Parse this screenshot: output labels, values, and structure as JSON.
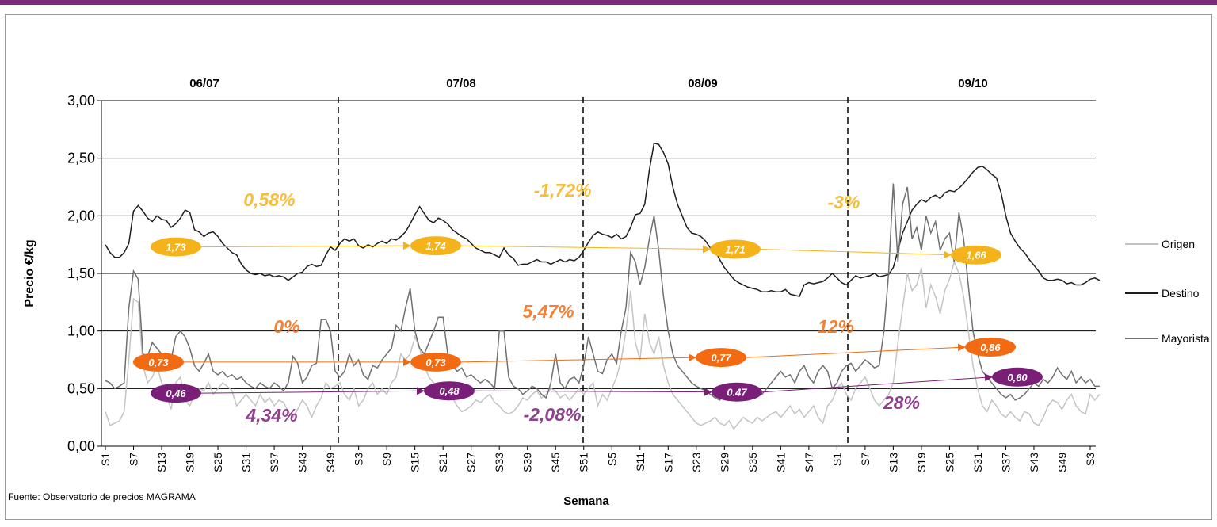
{
  "chart_data": {
    "type": "line",
    "y_label": "Precio €/kg",
    "x_label": "Semana",
    "source": "Fuente: Observatorio de precios MAGRAMA",
    "seasons": [
      "06/07",
      "07/08",
      "08/09",
      "09/10"
    ],
    "ylim": [
      0,
      3
    ],
    "yticks": [
      {
        "value": 0,
        "label": "0,00"
      },
      {
        "value": 0.5,
        "label": "0,50"
      },
      {
        "value": 1,
        "label": "1,00"
      },
      {
        "value": 1.5,
        "label": "1,50"
      },
      {
        "value": 2,
        "label": "2,00"
      },
      {
        "value": 2.5,
        "label": "2,50"
      },
      {
        "value": 3,
        "label": "3,00"
      }
    ],
    "grid": true,
    "categories": [
      "S1",
      null,
      null,
      null,
      null,
      null,
      "S7",
      null,
      null,
      null,
      null,
      null,
      "S13",
      null,
      null,
      null,
      null,
      null,
      "S19",
      null,
      null,
      null,
      null,
      null,
      "S25",
      null,
      null,
      null,
      null,
      null,
      "S31",
      null,
      null,
      null,
      null,
      null,
      "S37",
      null,
      null,
      null,
      null,
      null,
      "S43",
      null,
      null,
      null,
      null,
      null,
      "S49",
      null,
      null,
      null,
      null,
      null,
      "S3",
      null,
      null,
      null,
      null,
      null,
      "S9",
      null,
      null,
      null,
      null,
      null,
      "S15",
      null,
      null,
      null,
      null,
      null,
      "S21",
      null,
      null,
      null,
      null,
      null,
      "S27",
      null,
      null,
      null,
      null,
      null,
      "S33",
      null,
      null,
      null,
      null,
      null,
      "S39",
      null,
      null,
      null,
      null,
      null,
      "S45",
      null,
      null,
      null,
      null,
      null,
      "S51",
      null,
      null,
      null,
      null,
      null,
      "S5",
      null,
      null,
      null,
      null,
      null,
      "S11",
      null,
      null,
      null,
      null,
      null,
      "S17",
      null,
      null,
      null,
      null,
      null,
      "S23",
      null,
      null,
      null,
      null,
      null,
      "S29",
      null,
      null,
      null,
      null,
      null,
      "S35",
      null,
      null,
      null,
      null,
      null,
      "S41",
      null,
      null,
      null,
      null,
      null,
      "S47",
      null,
      null,
      null,
      null,
      null,
      "S1",
      null,
      null,
      null,
      null,
      null,
      "S7",
      null,
      null,
      null,
      null,
      null,
      "S13",
      null,
      null,
      null,
      null,
      null,
      "S19",
      null,
      null,
      null,
      null,
      null,
      "S25",
      null,
      null,
      null,
      null,
      null,
      "S31",
      null,
      null,
      null,
      null,
      null,
      "S37",
      null,
      null,
      null,
      null,
      null,
      "S43",
      null,
      null,
      null,
      null,
      null,
      "S49",
      null,
      null,
      null,
      null,
      null,
      "S3",
      null,
      null
    ],
    "series": [
      {
        "name": "Origen",
        "color": "#c4c4c4",
        "values": [
          0.3,
          0.18,
          0.2,
          0.22,
          0.3,
          0.75,
          1.28,
          1.25,
          0.7,
          0.55,
          0.6,
          0.7,
          0.55,
          0.45,
          0.32,
          0.55,
          0.6,
          0.4,
          0.35,
          0.45,
          0.5,
          0.48,
          0.55,
          0.45,
          0.5,
          0.55,
          0.52,
          0.48,
          0.35,
          0.4,
          0.45,
          0.4,
          0.35,
          0.45,
          0.38,
          0.42,
          0.35,
          0.4,
          0.38,
          0.3,
          0.25,
          0.32,
          0.4,
          0.35,
          0.25,
          0.35,
          0.42,
          0.55,
          0.5,
          0.52,
          0.55,
          0.45,
          0.4,
          0.5,
          0.35,
          0.4,
          0.5,
          0.55,
          0.45,
          0.5,
          0.45,
          0.55,
          0.6,
          0.8,
          0.75,
          0.8,
          0.95,
          0.85,
          0.7,
          0.6,
          0.55,
          0.5,
          0.45,
          0.4,
          0.42,
          0.35,
          0.3,
          0.32,
          0.35,
          0.4,
          0.38,
          0.42,
          0.45,
          0.38,
          0.35,
          0.3,
          0.28,
          0.3,
          0.35,
          0.42,
          0.4,
          0.45,
          0.48,
          0.42,
          0.45,
          0.5,
          0.48,
          0.42,
          0.45,
          0.4,
          0.45,
          0.5,
          0.45,
          0.5,
          0.55,
          0.35,
          0.45,
          0.4,
          0.5,
          0.6,
          0.75,
          1.0,
          1.35,
          0.9,
          0.75,
          1.15,
          0.9,
          0.8,
          0.95,
          0.7,
          0.55,
          0.45,
          0.4,
          0.35,
          0.3,
          0.25,
          0.2,
          0.18,
          0.2,
          0.22,
          0.25,
          0.2,
          0.18,
          0.22,
          0.15,
          0.2,
          0.25,
          0.22,
          0.2,
          0.25,
          0.22,
          0.25,
          0.28,
          0.3,
          0.25,
          0.3,
          0.35,
          0.28,
          0.32,
          0.25,
          0.3,
          0.35,
          0.25,
          0.2,
          0.35,
          0.4,
          0.5,
          0.55,
          0.45,
          0.4,
          0.5,
          0.55,
          0.6,
          0.5,
          0.4,
          0.35,
          0.4,
          0.45,
          0.55,
          0.9,
          1.2,
          1.5,
          1.35,
          1.4,
          1.55,
          1.2,
          1.4,
          1.3,
          1.15,
          1.35,
          1.45,
          1.6,
          1.5,
          1.3,
          1.0,
          0.7,
          0.5,
          0.35,
          0.3,
          0.4,
          0.35,
          0.28,
          0.25,
          0.3,
          0.25,
          0.22,
          0.3,
          0.28,
          0.2,
          0.18,
          0.25,
          0.35,
          0.4,
          0.38,
          0.32,
          0.4,
          0.45,
          0.35,
          0.3,
          0.28,
          0.45,
          0.4,
          0.45
        ]
      },
      {
        "name": "Destino",
        "color": "#1e1e1e",
        "values": [
          1.75,
          1.68,
          1.64,
          1.64,
          1.68,
          1.76,
          2.04,
          2.09,
          2.04,
          1.98,
          1.95,
          2.0,
          1.97,
          1.96,
          1.9,
          1.93,
          1.98,
          2.05,
          2.03,
          1.88,
          1.86,
          1.82,
          1.85,
          1.86,
          1.82,
          1.76,
          1.72,
          1.68,
          1.66,
          1.58,
          1.53,
          1.5,
          1.49,
          1.5,
          1.48,
          1.49,
          1.47,
          1.48,
          1.47,
          1.44,
          1.47,
          1.5,
          1.51,
          1.56,
          1.58,
          1.56,
          1.57,
          1.66,
          1.73,
          1.7,
          1.76,
          1.8,
          1.78,
          1.8,
          1.74,
          1.72,
          1.75,
          1.73,
          1.76,
          1.78,
          1.76,
          1.8,
          1.79,
          1.82,
          1.86,
          1.93,
          2.01,
          2.08,
          2.02,
          1.96,
          1.94,
          1.98,
          1.96,
          1.93,
          1.88,
          1.85,
          1.82,
          1.8,
          1.76,
          1.72,
          1.7,
          1.68,
          1.68,
          1.66,
          1.64,
          1.72,
          1.66,
          1.63,
          1.57,
          1.58,
          1.58,
          1.6,
          1.62,
          1.6,
          1.6,
          1.58,
          1.6,
          1.62,
          1.6,
          1.62,
          1.61,
          1.64,
          1.7,
          1.77,
          1.83,
          1.86,
          1.84,
          1.83,
          1.81,
          1.84,
          1.8,
          1.82,
          1.9,
          2.01,
          2.02,
          2.1,
          2.4,
          2.63,
          2.62,
          2.55,
          2.45,
          2.25,
          2.1,
          2.0,
          1.9,
          1.85,
          1.84,
          1.82,
          1.78,
          1.72,
          1.7,
          1.62,
          1.55,
          1.5,
          1.45,
          1.42,
          1.4,
          1.38,
          1.37,
          1.36,
          1.34,
          1.34,
          1.35,
          1.34,
          1.34,
          1.36,
          1.32,
          1.31,
          1.3,
          1.4,
          1.42,
          1.41,
          1.42,
          1.43,
          1.46,
          1.5,
          1.46,
          1.42,
          1.4,
          1.44,
          1.48,
          1.46,
          1.47,
          1.48,
          1.5,
          1.47,
          1.48,
          1.49,
          1.55,
          1.7,
          1.85,
          1.95,
          2.05,
          2.1,
          2.14,
          2.12,
          2.16,
          2.18,
          2.15,
          2.2,
          2.22,
          2.21,
          2.24,
          2.28,
          2.33,
          2.38,
          2.42,
          2.43,
          2.4,
          2.36,
          2.33,
          2.2,
          2.0,
          1.85,
          1.78,
          1.72,
          1.68,
          1.62,
          1.57,
          1.52,
          1.46,
          1.44,
          1.44,
          1.45,
          1.44,
          1.41,
          1.42,
          1.4,
          1.4,
          1.42,
          1.45,
          1.46,
          1.44
        ]
      },
      {
        "name": "Mayorista",
        "color": "#707070",
        "values": [
          0.57,
          0.55,
          0.5,
          0.52,
          0.55,
          1.2,
          1.52,
          1.45,
          0.8,
          0.78,
          0.9,
          0.85,
          0.8,
          0.7,
          0.75,
          0.95,
          1.0,
          0.95,
          0.85,
          0.7,
          0.65,
          0.72,
          0.8,
          0.65,
          0.62,
          0.65,
          0.6,
          0.62,
          0.58,
          0.6,
          0.55,
          0.52,
          0.5,
          0.55,
          0.52,
          0.5,
          0.55,
          0.52,
          0.48,
          0.55,
          0.78,
          0.72,
          0.55,
          0.6,
          0.7,
          0.72,
          1.1,
          1.1,
          1.0,
          0.65,
          0.6,
          0.65,
          0.8,
          0.7,
          0.75,
          0.62,
          0.58,
          0.7,
          0.68,
          0.75,
          0.8,
          0.85,
          1.05,
          1.0,
          1.2,
          1.37,
          1.0,
          0.85,
          0.8,
          0.9,
          1.0,
          1.12,
          1.12,
          0.8,
          0.7,
          0.65,
          0.68,
          0.6,
          0.62,
          0.58,
          0.55,
          0.58,
          0.55,
          0.5,
          1.0,
          1.0,
          0.6,
          0.52,
          0.5,
          0.45,
          0.48,
          0.52,
          0.5,
          0.45,
          0.42,
          0.55,
          0.8,
          0.55,
          0.5,
          0.58,
          0.6,
          0.55,
          0.7,
          0.95,
          0.8,
          0.65,
          0.63,
          0.75,
          0.8,
          0.72,
          1.0,
          1.2,
          1.68,
          1.6,
          1.4,
          1.55,
          1.8,
          2.0,
          1.7,
          1.3,
          1.0,
          0.8,
          0.7,
          0.65,
          0.6,
          0.55,
          0.52,
          0.5,
          0.48,
          0.45,
          0.42,
          0.4,
          0.45,
          0.42,
          0.4,
          0.4,
          0.42,
          0.4,
          0.45,
          0.5,
          0.45,
          0.5,
          0.55,
          0.6,
          0.65,
          0.6,
          0.62,
          0.55,
          0.65,
          0.7,
          0.6,
          0.55,
          0.65,
          0.7,
          0.65,
          0.5,
          0.55,
          0.65,
          0.7,
          0.72,
          0.65,
          0.7,
          0.75,
          0.72,
          0.68,
          0.7,
          1.0,
          1.5,
          2.28,
          1.6,
          2.1,
          2.25,
          1.8,
          1.9,
          1.7,
          2.0,
          1.85,
          1.95,
          1.7,
          1.8,
          1.85,
          1.6,
          2.03,
          1.8,
          1.4,
          1.0,
          0.8,
          0.65,
          0.6,
          0.55,
          0.5,
          0.45,
          0.42,
          0.45,
          0.4,
          0.42,
          0.45,
          0.5,
          0.55,
          0.52,
          0.58,
          0.55,
          0.6,
          0.68,
          0.62,
          0.58,
          0.65,
          0.55,
          0.6,
          0.55,
          0.58,
          0.52,
          0.52
        ]
      }
    ],
    "marker_groups": [
      {
        "color": "#f5b31b",
        "points": [
          {
            "value": 1.73,
            "label": "1,73"
          },
          {
            "value": 1.74,
            "label": "1,74"
          },
          {
            "value": 1.71,
            "label": "1,71"
          },
          {
            "value": 1.66,
            "label": "1,66"
          }
        ],
        "changes": [
          "0,58%",
          "-1,72%",
          "-3%"
        ]
      },
      {
        "color": "#f26b12",
        "points": [
          {
            "value": 0.73,
            "label": "0,73"
          },
          {
            "value": 0.73,
            "label": "0,73"
          },
          {
            "value": 0.77,
            "label": "0,77"
          },
          {
            "value": 0.86,
            "label": "0,86"
          }
        ],
        "changes": [
          "0%",
          "5,47%",
          "12%"
        ]
      },
      {
        "color": "#7a1f78",
        "points": [
          {
            "value": 0.46,
            "label": "0,46"
          },
          {
            "value": 0.48,
            "label": "0,48"
          },
          {
            "value": 0.47,
            "label": "0.47"
          },
          {
            "value": 0.6,
            "label": "0,60"
          }
        ],
        "changes": [
          "4,34%",
          "-2,08%",
          "28%"
        ]
      }
    ]
  }
}
